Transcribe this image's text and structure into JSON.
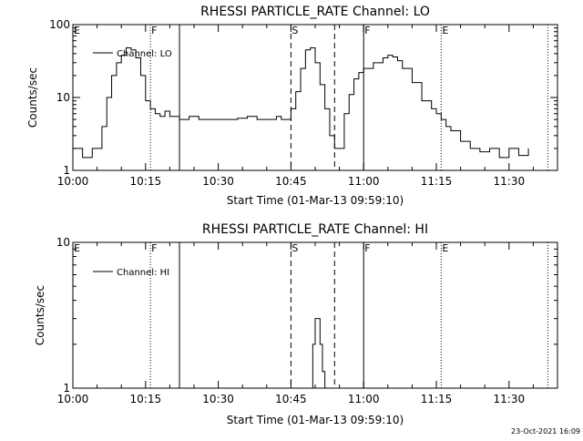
{
  "footer_timestamp": "23-Oct-2021 16:09",
  "chart_data": [
    {
      "type": "line",
      "title": "RHESSI PARTICLE_RATE Channel: LO",
      "xlabel": "Start Time (01-Mar-13 09:59:10)",
      "ylabel": "Counts/sec",
      "yscale": "log",
      "ylim": [
        1,
        100
      ],
      "xlim": [
        "10:00",
        "11:40"
      ],
      "x_ticks": [
        "10:00",
        "10:15",
        "10:30",
        "10:45",
        "11:00",
        "11:15",
        "11:30"
      ],
      "y_ticks": [
        "1",
        "10",
        "100"
      ],
      "legend": "top-left",
      "series": [
        {
          "name": "Channel: LO",
          "x": [
            "10:00",
            "10:02",
            "10:04",
            "10:05",
            "10:06",
            "10:07",
            "10:08",
            "10:09",
            "10:10",
            "10:11",
            "10:12",
            "10:13",
            "10:14",
            "10:15",
            "10:16",
            "10:17",
            "10:18",
            "10:19",
            "10:20",
            "10:22",
            "10:24",
            "10:26",
            "10:28",
            "10:30",
            "10:32",
            "10:34",
            "10:36",
            "10:38",
            "10:40",
            "10:42",
            "10:43",
            "10:44",
            "10:45",
            "10:46",
            "10:47",
            "10:48",
            "10:49",
            "10:50",
            "10:51",
            "10:52",
            "10:53",
            "10:54",
            "10:55",
            "10:56",
            "10:57",
            "10:58",
            "10:59",
            "11:00",
            "11:02",
            "11:04",
            "11:05",
            "11:06",
            "11:07",
            "11:08",
            "11:10",
            "11:12",
            "11:14",
            "11:15",
            "11:16",
            "11:17",
            "11:18",
            "11:20",
            "11:22",
            "11:24",
            "11:26",
            "11:28",
            "11:30",
            "11:32",
            "11:34"
          ],
          "values": [
            2,
            1.5,
            2,
            2,
            4,
            10,
            20,
            30,
            38,
            48,
            45,
            35,
            20,
            9,
            7,
            6,
            5.5,
            6.5,
            5.5,
            5,
            5.5,
            5,
            5,
            5,
            5,
            5.2,
            5.5,
            5,
            5,
            5.5,
            5,
            5,
            7,
            12,
            25,
            45,
            48,
            30,
            15,
            7,
            3,
            2,
            2,
            6,
            11,
            18,
            22,
            25,
            30,
            35,
            38,
            36,
            32,
            25,
            16,
            9,
            7,
            6,
            5,
            4,
            3.5,
            2.5,
            2,
            1.8,
            2,
            1.5,
            2,
            1.6,
            2
          ]
        }
      ],
      "events": [
        {
          "label": "E",
          "time": "10:00",
          "style": "dotted",
          "label_only": true
        },
        {
          "label": "F",
          "time": "10:16",
          "style": "dotted"
        },
        {
          "label": "",
          "time": "10:22",
          "style": "solid"
        },
        {
          "label": "S",
          "time": "10:45",
          "style": "dashed"
        },
        {
          "label": "",
          "time": "10:54",
          "style": "dashed"
        },
        {
          "label": "F",
          "time": "11:00",
          "style": "solid"
        },
        {
          "label": "E",
          "time": "11:16",
          "style": "dotted"
        },
        {
          "label": "",
          "time": "11:38",
          "style": "dotted"
        }
      ]
    },
    {
      "type": "line",
      "title": "RHESSI PARTICLE_RATE Channel: HI",
      "xlabel": "Start Time (01-Mar-13 09:59:10)",
      "ylabel": "Counts/sec",
      "yscale": "log",
      "ylim": [
        1,
        10
      ],
      "xlim": [
        "10:00",
        "11:40"
      ],
      "x_ticks": [
        "10:00",
        "10:15",
        "10:30",
        "10:45",
        "11:00",
        "11:15",
        "11:30"
      ],
      "y_ticks": [
        "1",
        "10"
      ],
      "legend": "top-left",
      "series": [
        {
          "name": "Channel: HI",
          "x": [
            "10:49",
            "10:49.5",
            "10:50",
            "10:50.5",
            "10:51",
            "10:51.5",
            "10:52"
          ],
          "values": [
            1,
            2,
            3,
            3,
            2,
            1.3,
            1
          ]
        }
      ],
      "events": [
        {
          "label": "E",
          "time": "10:00",
          "style": "dotted",
          "label_only": true
        },
        {
          "label": "F",
          "time": "10:16",
          "style": "dotted"
        },
        {
          "label": "",
          "time": "10:22",
          "style": "solid"
        },
        {
          "label": "S",
          "time": "10:45",
          "style": "dashed"
        },
        {
          "label": "",
          "time": "10:54",
          "style": "dashed"
        },
        {
          "label": "F",
          "time": "11:00",
          "style": "solid"
        },
        {
          "label": "E",
          "time": "11:16",
          "style": "dotted"
        },
        {
          "label": "",
          "time": "11:38",
          "style": "dotted"
        }
      ]
    }
  ]
}
